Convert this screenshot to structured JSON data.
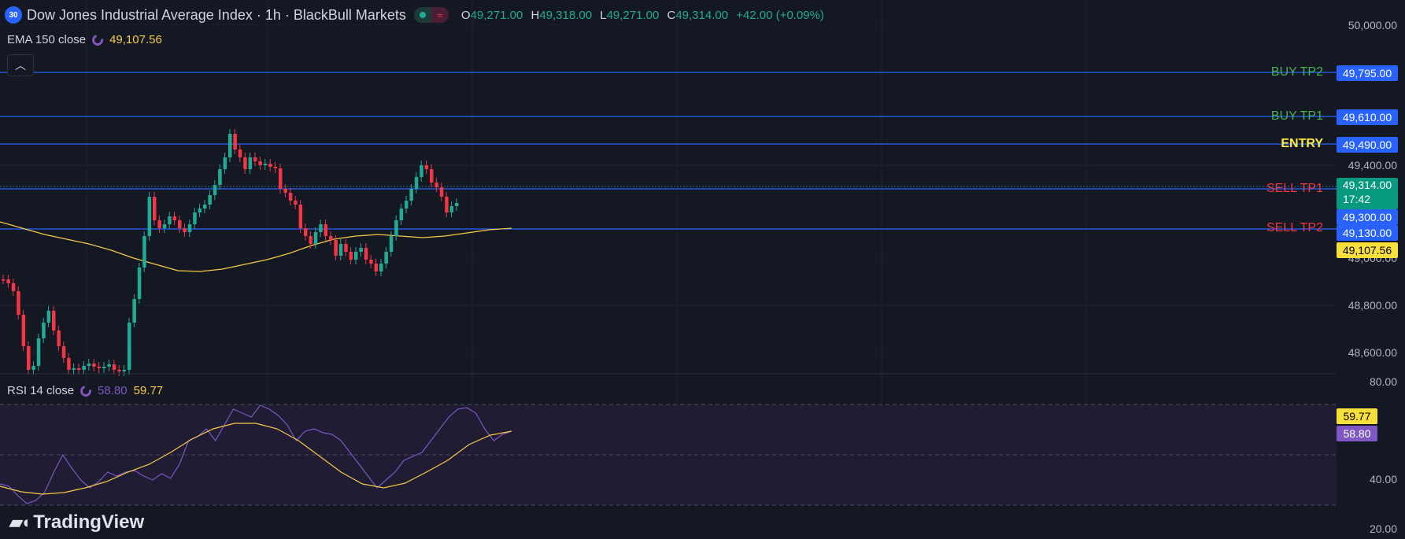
{
  "header": {
    "symbol_badge": "30",
    "title": "Dow Jones Industrial Average Index · 1h · BlackBull Markets",
    "ohlc": {
      "o_label": "O",
      "o_value": "49,271.00",
      "h_label": "H",
      "h_value": "49,318.00",
      "l_label": "L",
      "l_value": "49,271.00",
      "c_label": "C",
      "c_value": "49,314.00",
      "change": "+42.00 (+0.09%)"
    }
  },
  "ema": {
    "label": "EMA 150 close",
    "value": "49,107.56",
    "color": "#f7c948"
  },
  "rsi": {
    "label": "RSI 14 close",
    "value_rsi": "58.80",
    "value_ma": "59.77",
    "rsi_color": "#7e57c2",
    "ma_color": "#f7c948"
  },
  "price_axis": [
    "50,000.00",
    "49,400.00",
    "49,000.00",
    "48,800.00",
    "48,600.00"
  ],
  "rsi_axis": [
    "80.00",
    "40.00",
    "20.00"
  ],
  "levels": [
    {
      "label": "BUY TP2",
      "price": "49,795.00",
      "color": "#4caf50"
    },
    {
      "label": "BUY TP1",
      "price": "49,610.00",
      "color": "#4caf50"
    },
    {
      "label": "ENTRY",
      "price": "49,490.00",
      "color": "#ffeb3b"
    },
    {
      "label": "SELL TP1",
      "price": "",
      "color": "#f23645"
    },
    {
      "label": "SELL TP2",
      "price": "49,130.00",
      "color": "#f23645"
    }
  ],
  "tags": {
    "current_price": "49,314.00",
    "countdown": "17:42",
    "sell_tp1_price": "49,300.00",
    "ema_price": "49,107.56",
    "rsi_ma_tag": "59.77",
    "rsi_tag": "58.80"
  },
  "branding": "TradingView",
  "colors": {
    "up": "#22ab94",
    "down": "#f23645",
    "level_line": "#2962ff",
    "background": "#141823"
  }
}
